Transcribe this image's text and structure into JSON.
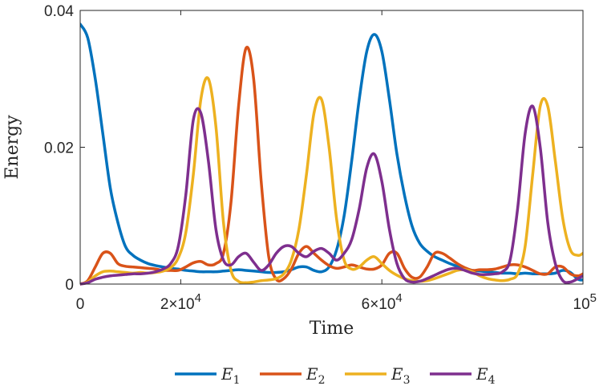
{
  "chart_data": {
    "type": "line",
    "title": "",
    "xlabel": "Time",
    "ylabel": "Energy",
    "xlim": [
      0,
      100000
    ],
    "ylim": [
      0,
      0.04
    ],
    "grid": false,
    "legend_position": "bottom",
    "x_ticks": [
      {
        "value": 0,
        "base": "0",
        "exp": ""
      },
      {
        "value": 20000,
        "base": "2×10",
        "exp": "4"
      },
      {
        "value": 60000,
        "base": "6×10",
        "exp": "4"
      },
      {
        "value": 100000,
        "base": "10",
        "exp": "5"
      }
    ],
    "y_ticks": [
      {
        "value": 0,
        "label": "0"
      },
      {
        "value": 0.02,
        "label": "0.02"
      },
      {
        "value": 0.04,
        "label": "0.04"
      }
    ],
    "x": [
      0,
      1500,
      3000,
      4500,
      6000,
      7500,
      9000,
      10500,
      12000,
      13500,
      15000,
      16500,
      18000,
      19500,
      21000,
      22500,
      24000,
      25500,
      27000,
      28500,
      30000,
      31500,
      33000,
      34500,
      36000,
      37500,
      39000,
      40500,
      42000,
      43500,
      45000,
      46500,
      48000,
      49500,
      51000,
      52500,
      54000,
      55500,
      57000,
      58500,
      60000,
      61500,
      63000,
      64500,
      66000,
      67500,
      69000,
      70500,
      72000,
      73500,
      75000,
      76500,
      78000,
      79500,
      81000,
      82500,
      84000,
      85500,
      87000,
      88500,
      90000,
      91500,
      93000,
      94500,
      96000,
      97500,
      99000,
      100000
    ],
    "series": [
      {
        "name": "E",
        "sub": "1",
        "color": "#0072BD",
        "values": [
          0.038,
          0.036,
          0.03,
          0.022,
          0.014,
          0.009,
          0.0055,
          0.0042,
          0.0035,
          0.003,
          0.0027,
          0.0025,
          0.0023,
          0.0022,
          0.002,
          0.0019,
          0.0018,
          0.0018,
          0.0018,
          0.0019,
          0.002,
          0.0021,
          0.002,
          0.0019,
          0.0018,
          0.0017,
          0.0017,
          0.0018,
          0.0021,
          0.0025,
          0.0025,
          0.002,
          0.0018,
          0.0025,
          0.005,
          0.01,
          0.018,
          0.027,
          0.034,
          0.0365,
          0.034,
          0.027,
          0.019,
          0.013,
          0.0085,
          0.006,
          0.0048,
          0.004,
          0.0035,
          0.003,
          0.0026,
          0.0023,
          0.002,
          0.0019,
          0.0018,
          0.0017,
          0.0016,
          0.0016,
          0.0015,
          0.0016,
          0.0015,
          0.0015,
          0.0015,
          0.0016,
          0.002,
          0.0017,
          0.0007,
          0.0006
        ]
      },
      {
        "name": "E",
        "sub": "2",
        "color": "#D95319",
        "values": [
          0,
          0.0005,
          0.0025,
          0.0045,
          0.0045,
          0.003,
          0.0026,
          0.0025,
          0.0024,
          0.0023,
          0.0022,
          0.002,
          0.002,
          0.002,
          0.0025,
          0.0031,
          0.0033,
          0.0028,
          0.003,
          0.0045,
          0.012,
          0.026,
          0.0345,
          0.03,
          0.015,
          0.004,
          0.0007,
          0.0008,
          0.0022,
          0.0045,
          0.0055,
          0.0045,
          0.0035,
          0.0027,
          0.0023,
          0.0025,
          0.0028,
          0.0025,
          0.0022,
          0.0022,
          0.0028,
          0.0045,
          0.0045,
          0.0023,
          0.001,
          0.001,
          0.0025,
          0.0045,
          0.0045,
          0.0038,
          0.003,
          0.0024,
          0.002,
          0.0021,
          0.0021,
          0.0022,
          0.0025,
          0.0028,
          0.0028,
          0.0025,
          0.002,
          0.0015,
          0.0015,
          0.0025,
          0.0025,
          0.0015,
          0.0012,
          0.0015
        ]
      },
      {
        "name": "E",
        "sub": "3",
        "color": "#EDB120",
        "values": [
          0,
          0.0003,
          0.0012,
          0.0018,
          0.0019,
          0.0018,
          0.0017,
          0.0016,
          0.0017,
          0.0016,
          0.0017,
          0.0019,
          0.0024,
          0.0038,
          0.0075,
          0.016,
          0.027,
          0.03,
          0.023,
          0.009,
          0.002,
          0.0004,
          0.0002,
          0.0003,
          0.0005,
          0.0006,
          0.0008,
          0.0015,
          0.0035,
          0.008,
          0.016,
          0.025,
          0.027,
          0.02,
          0.0095,
          0.0035,
          0.0022,
          0.0025,
          0.0035,
          0.004,
          0.003,
          0.002,
          0.0013,
          0.0008,
          0.0005,
          0.0004,
          0.0005,
          0.0008,
          0.0012,
          0.0016,
          0.002,
          0.0021,
          0.0018,
          0.0012,
          0.0008,
          0.0006,
          0.0005,
          0.0007,
          0.0015,
          0.0055,
          0.016,
          0.026,
          0.026,
          0.018,
          0.0095,
          0.005,
          0.0042,
          0.0045
        ]
      },
      {
        "name": "E",
        "sub": "4",
        "color": "#7E2F8E",
        "values": [
          0,
          0.0002,
          0.0007,
          0.001,
          0.0012,
          0.0013,
          0.0014,
          0.0015,
          0.0015,
          0.0016,
          0.0018,
          0.0022,
          0.003,
          0.0055,
          0.013,
          0.024,
          0.025,
          0.018,
          0.008,
          0.0035,
          0.0028,
          0.004,
          0.0045,
          0.0032,
          0.002,
          0.0028,
          0.0045,
          0.0055,
          0.0055,
          0.0045,
          0.004,
          0.0048,
          0.0052,
          0.0045,
          0.0035,
          0.0045,
          0.0065,
          0.011,
          0.017,
          0.019,
          0.015,
          0.008,
          0.003,
          0.0008,
          0.0003,
          0.0004,
          0.0008,
          0.0013,
          0.0018,
          0.0022,
          0.0023,
          0.002,
          0.0016,
          0.0014,
          0.0014,
          0.0015,
          0.0018,
          0.0035,
          0.011,
          0.022,
          0.026,
          0.02,
          0.009,
          0.003,
          0.0005,
          0.0003,
          0.0008,
          0.0012
        ]
      }
    ]
  }
}
